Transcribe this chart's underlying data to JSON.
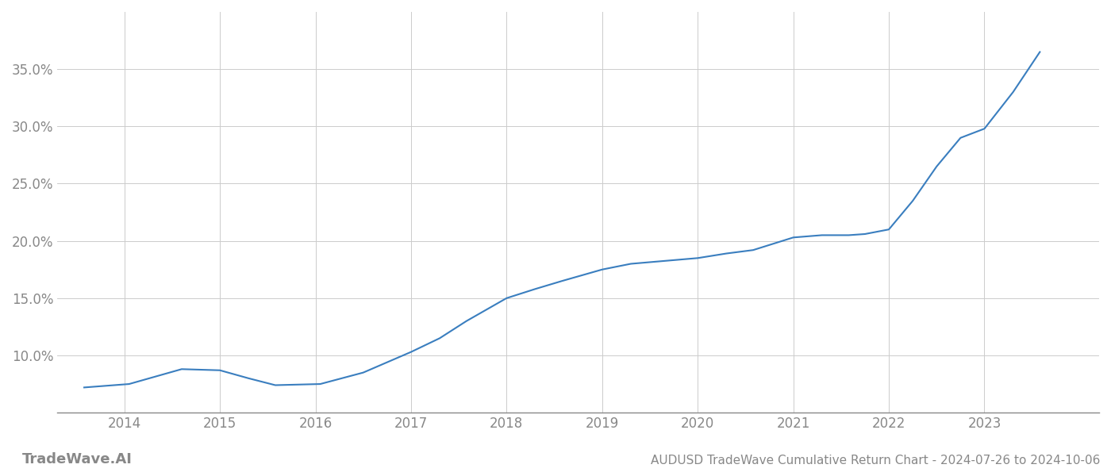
{
  "title": "AUDUSD TradeWave Cumulative Return Chart - 2024-07-26 to 2024-10-06",
  "watermark": "TradeWave.AI",
  "line_color": "#3a7ebf",
  "line_width": 1.5,
  "background_color": "#ffffff",
  "grid_color": "#cccccc",
  "x_years": [
    2014,
    2015,
    2016,
    2017,
    2018,
    2019,
    2020,
    2021,
    2022,
    2023
  ],
  "x_data": [
    2013.58,
    2014.05,
    2014.6,
    2015.0,
    2015.3,
    2015.58,
    2016.05,
    2016.5,
    2017.0,
    2017.3,
    2017.58,
    2018.0,
    2018.3,
    2018.58,
    2019.0,
    2019.3,
    2019.58,
    2020.0,
    2020.3,
    2020.58,
    2021.0,
    2021.3,
    2021.58,
    2021.75,
    2022.0,
    2022.25,
    2022.5,
    2022.75,
    2023.0,
    2023.3,
    2023.58
  ],
  "y_data": [
    7.2,
    7.5,
    8.8,
    8.7,
    8.0,
    7.4,
    7.5,
    8.5,
    10.3,
    11.5,
    13.0,
    15.0,
    15.8,
    16.5,
    17.5,
    18.0,
    18.2,
    18.5,
    18.9,
    19.2,
    20.3,
    20.5,
    20.5,
    20.6,
    21.0,
    23.5,
    26.5,
    29.0,
    29.8,
    33.0,
    36.5
  ],
  "ylim": [
    5.0,
    40.0
  ],
  "yticks": [
    10.0,
    15.0,
    20.0,
    25.0,
    30.0,
    35.0
  ],
  "xlim": [
    2013.3,
    2024.2
  ],
  "title_fontsize": 11,
  "tick_fontsize": 12,
  "watermark_fontsize": 13,
  "axis_color": "#888888",
  "tick_color": "#888888"
}
